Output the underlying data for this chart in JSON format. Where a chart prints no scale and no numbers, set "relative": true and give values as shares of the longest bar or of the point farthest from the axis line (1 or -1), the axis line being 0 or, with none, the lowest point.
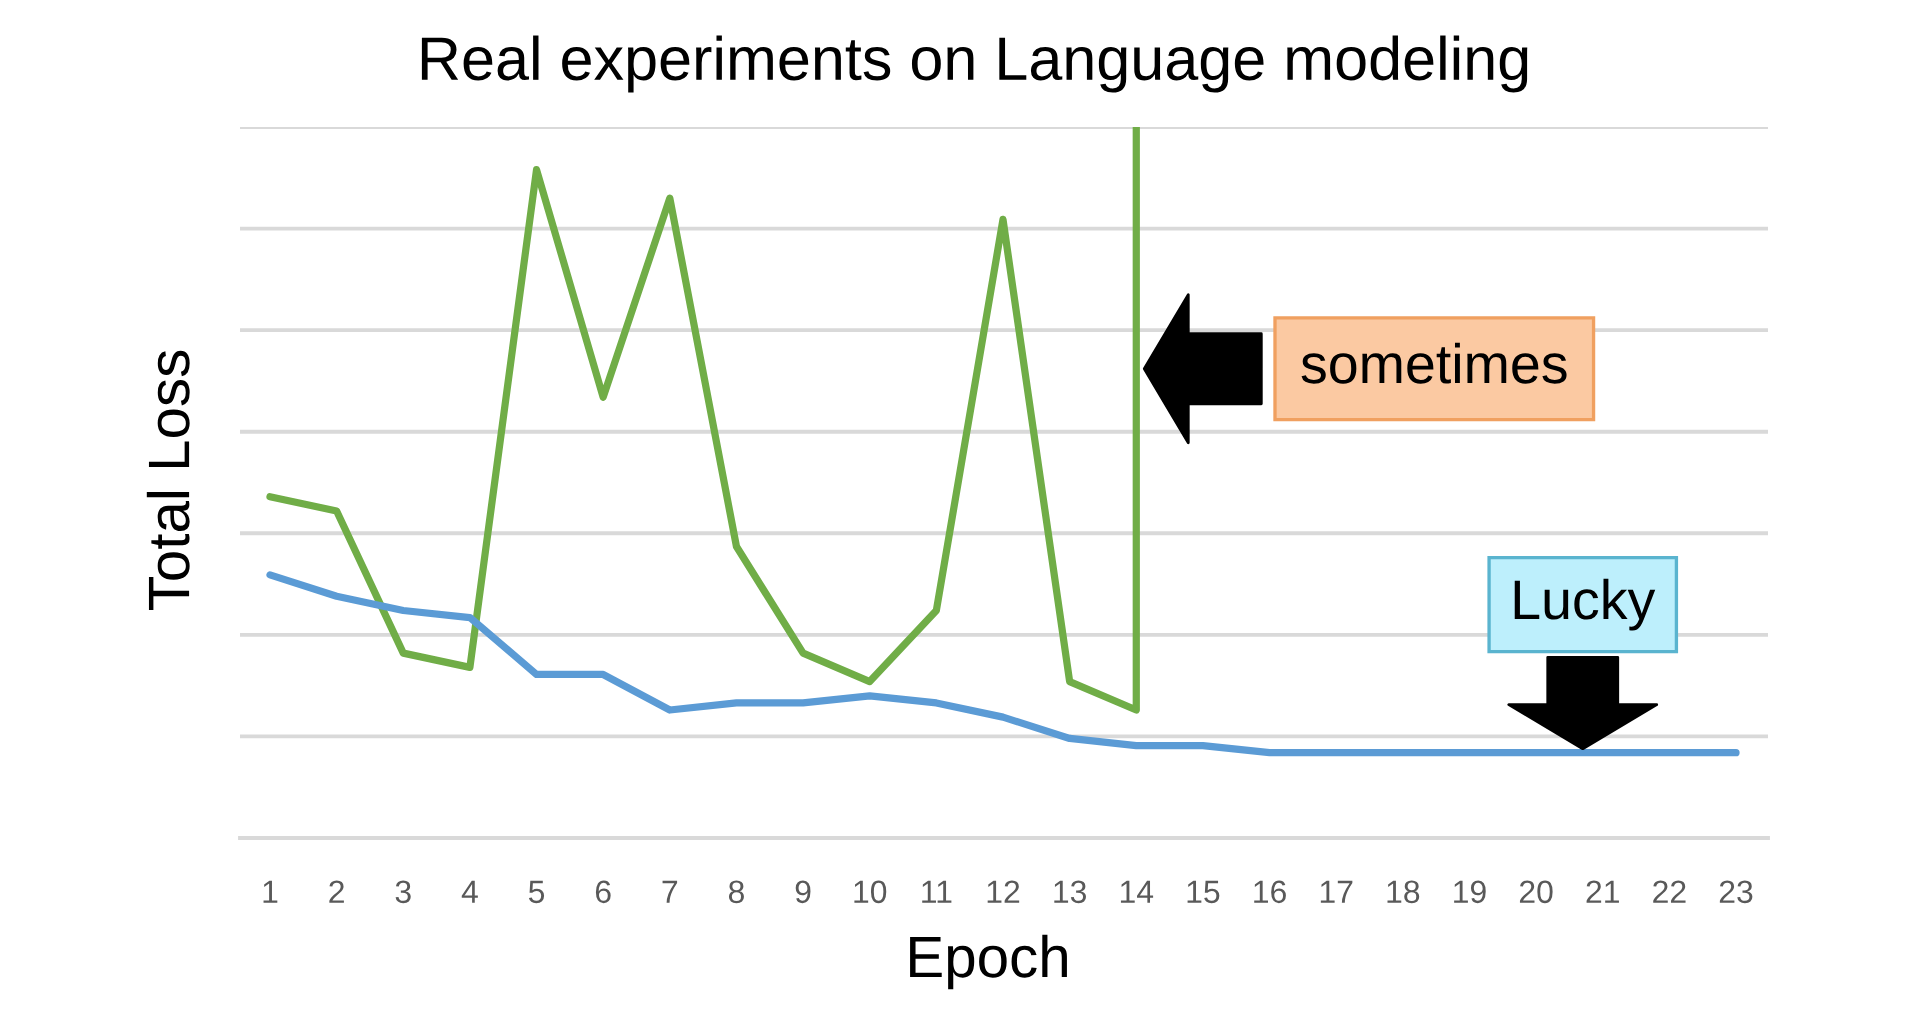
{
  "chart_data": {
    "type": "line",
    "title": "Real experiments on Language modeling",
    "xlabel": "Epoch",
    "ylabel": "Total Loss",
    "relative": true,
    "tick_labels": "x",
    "grid": "y",
    "xlim": [
      0.55,
      23.48
    ],
    "xticks": [
      1,
      2,
      3,
      4,
      5,
      6,
      7,
      8,
      9,
      10,
      11,
      12,
      13,
      14,
      15,
      16,
      17,
      18,
      19,
      20,
      21,
      22,
      23
    ],
    "series": [
      {
        "color": "#70ad47",
        "x": [
          1,
          2,
          3,
          4,
          5,
          6,
          7,
          8,
          9,
          10,
          11,
          12,
          13,
          14,
          14
        ],
        "values": [
          0.48,
          0.46,
          0.26,
          0.24,
          0.94,
          0.62,
          0.9,
          0.41,
          0.26,
          0.22,
          0.32,
          0.87,
          0.22,
          0.18,
          1.0
        ]
      },
      {
        "color": "#5b9bd5",
        "x": [
          1,
          2,
          3,
          4,
          5,
          6,
          7,
          8,
          9,
          10,
          11,
          12,
          13,
          14,
          15,
          16,
          17,
          18,
          19,
          20,
          21,
          22,
          23
        ],
        "values": [
          0.37,
          0.34,
          0.32,
          0.31,
          0.23,
          0.23,
          0.18,
          0.19,
          0.19,
          0.2,
          0.19,
          0.17,
          0.14,
          0.13,
          0.13,
          0.12,
          0.12,
          0.12,
          0.12,
          0.12,
          0.12,
          0.12,
          0.12
        ]
      }
    ],
    "annotations": [
      {
        "text": "sometimes",
        "x": 14,
        "y": 0.66
      },
      {
        "text": "Lucky",
        "x": 20.7,
        "y": 0.12
      }
    ]
  }
}
